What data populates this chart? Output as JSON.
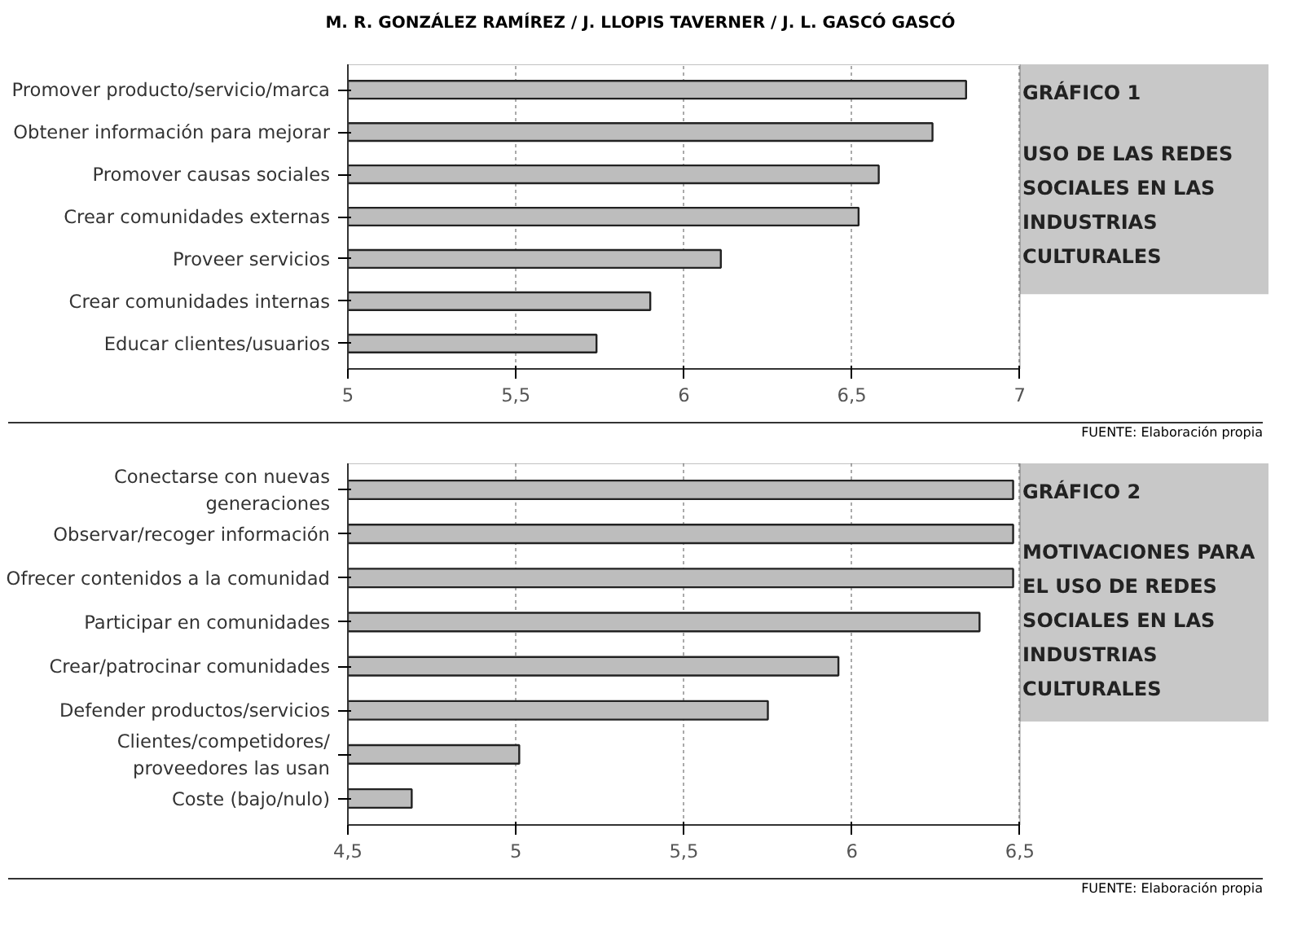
{
  "chart_data": [
    {
      "type": "bar",
      "orientation": "horizontal",
      "title": "GRÁFICO 1",
      "subtitle": "USO DE LAS REDES SOCIALES EN LAS INDUSTRIAS CULTURALES",
      "annotations": [
        "M. R. GONZÁLEZ RAMÍREZ / J. LLOPIS TAVERNER / J. L. GASCÓ GASCÓ",
        "FUENTE: Elaboración propia"
      ],
      "categories": [
        "Promover producto/servicio/marca",
        "Obtener información para mejorar",
        "Promover causas sociales",
        "Crear comunidades externas",
        "Proveer servicios",
        "Crear comunidades internas",
        "Educar clientes/usuarios"
      ],
      "values": [
        6.84,
        6.74,
        6.58,
        6.52,
        6.11,
        5.9,
        5.74
      ],
      "color": "#bdbdbd",
      "xlim": [
        5,
        7
      ],
      "xticks": [
        5,
        {
          "value": 5.5,
          "label": "5,5"
        },
        6,
        {
          "value": 6.5,
          "label": "6,5"
        },
        7
      ],
      "grid": "x"
    },
    {
      "type": "bar",
      "orientation": "horizontal",
      "title": "GRÁFICO 2",
      "subtitle": "MOTIVACIONES PARA EL USO DE REDES SOCIALES EN LAS INDUSTRIAS CULTURALES",
      "annotations": [
        "FUENTE: Elaboración propia"
      ],
      "categories": [
        "Conectarse con nuevas generaciones",
        "Observar/recoger información",
        "Ofrecer contenidos a la comunidad",
        "Participar en comunidades",
        "Crear/patrocinar comunidades",
        "Defender productos/servicios",
        "Clientes/competidores/ proveedores las usan",
        "Coste (bajo/nulo)"
      ],
      "values": [
        6.48,
        6.48,
        6.48,
        6.38,
        5.96,
        5.75,
        5.01,
        4.69
      ],
      "color": "#bdbdbd",
      "xlim": [
        4.5,
        6.5
      ],
      "xticks": [
        {
          "value": 4.5,
          "label": "4,5"
        },
        5,
        {
          "value": 5.5,
          "label": "5,5"
        },
        6,
        {
          "value": 6.5,
          "label": "6,5"
        }
      ],
      "grid": "x"
    }
  ]
}
